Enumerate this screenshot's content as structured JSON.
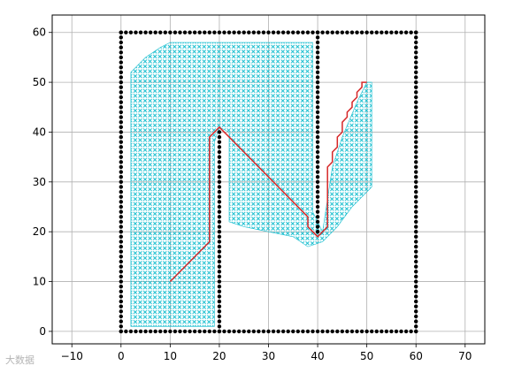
{
  "chart_data": {
    "type": "scatter",
    "title": "",
    "xlabel": "",
    "ylabel": "",
    "xlim": [
      -14,
      74
    ],
    "ylim": [
      -2.5,
      63.5
    ],
    "xticks": [
      -10,
      0,
      10,
      20,
      30,
      40,
      50,
      60,
      70
    ],
    "yticks": [
      0,
      10,
      20,
      30,
      40,
      50,
      60
    ],
    "grid": true,
    "legend": "none",
    "colors": {
      "obstacles": "#000000",
      "visited": "#17becf",
      "path": "#d62728",
      "frame": "#000000",
      "grid": "#b0b0b0"
    },
    "obstacle_walls": [
      {
        "x": [
          0,
          60
        ],
        "y": [
          0,
          0
        ]
      },
      {
        "x": [
          0,
          60
        ],
        "y": [
          60,
          60
        ]
      },
      {
        "x": [
          0,
          0
        ],
        "y": [
          0,
          60
        ]
      },
      {
        "x": [
          60,
          60
        ],
        "y": [
          0,
          60
        ]
      },
      {
        "x": [
          20,
          20
        ],
        "y": [
          0,
          40
        ]
      },
      {
        "x": [
          40,
          40
        ],
        "y": [
          20,
          60
        ]
      }
    ],
    "visited_region": [
      [
        2,
        1
      ],
      [
        2,
        52
      ],
      [
        5,
        55
      ],
      [
        8,
        57
      ],
      [
        10,
        58
      ],
      [
        39,
        58
      ],
      [
        39,
        24
      ],
      [
        41,
        20
      ],
      [
        43,
        33
      ],
      [
        45,
        39
      ],
      [
        48,
        46
      ],
      [
        50,
        50
      ],
      [
        51,
        50
      ],
      [
        51,
        29
      ],
      [
        47,
        25
      ],
      [
        44,
        21
      ],
      [
        41,
        18
      ],
      [
        38,
        17
      ],
      [
        35,
        19
      ],
      [
        30,
        20
      ],
      [
        25,
        21
      ],
      [
        22,
        22
      ],
      [
        22,
        40
      ],
      [
        20,
        41
      ],
      [
        19,
        38
      ],
      [
        19,
        1
      ]
    ],
    "path": {
      "x": [
        10,
        18,
        18,
        19,
        20,
        38,
        38,
        39,
        40,
        42,
        42,
        43,
        43,
        44,
        44,
        45,
        45,
        46,
        46,
        47,
        47,
        48,
        48,
        49,
        49,
        50
      ],
      "y": [
        10,
        18,
        39,
        40,
        41,
        23,
        21,
        20,
        19,
        21,
        33,
        34,
        36,
        37,
        39,
        40,
        42,
        43,
        44,
        45,
        46,
        47,
        48,
        49,
        50,
        50
      ]
    }
  },
  "watermark": {
    "text": "大数据"
  }
}
